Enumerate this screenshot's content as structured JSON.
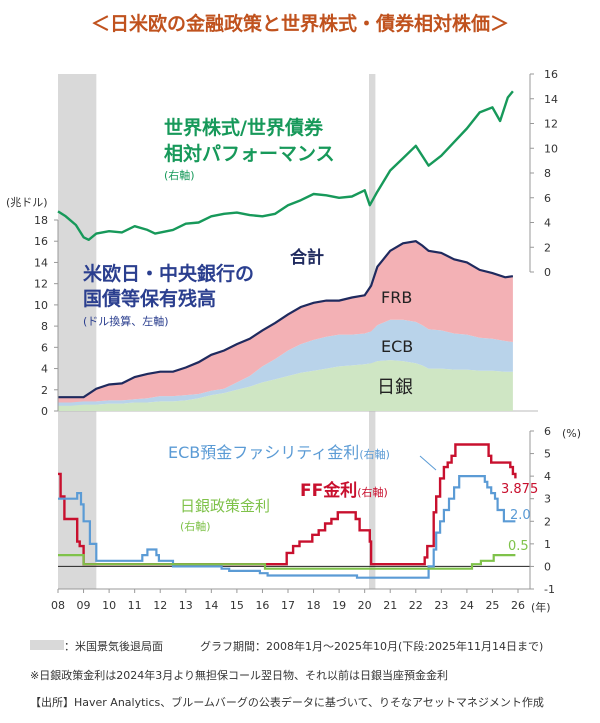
{
  "page_title": "＜日米欧の金融政策と世界株式・債券相対株価＞",
  "colors": {
    "title": "#c0521e",
    "green": "#17995a",
    "navy": "#1f2a5e",
    "frb": "#f3b1b5",
    "ecb": "#b9d3ea",
    "boj": "#cfe6c4",
    "ff": "#c8102e",
    "ecbline": "#5b9bd5",
    "bojline": "#7fc24a",
    "recession": "#d9d9d9"
  },
  "legend_recession": "：米国景気後退局面",
  "graph_period": "グラフ期間：2008年1月～2025年10月(下段:2025年11月14日まで)",
  "footnote": "※日銀政策金利は2024年3月より無担保コール翌日物、それ以前は日銀当座預金金利",
  "source": "【出所】Haver Analytics、ブルームバーグの公表データに基づいて、りそなアセットマネジメント作成",
  "chart_data": [
    {
      "type": "area",
      "title": "米欧日・中央銀行の国債等保有残高",
      "subtitle": "(ドル換算、左軸)",
      "ylabel": "(兆ドル)",
      "ylim": [
        0,
        18
      ],
      "yticks": [
        "0",
        "2",
        "4",
        "6",
        "8",
        "10",
        "12",
        "14",
        "16",
        "18"
      ],
      "x": [
        2008.0,
        2008.5,
        2009.0,
        2009.5,
        2010.0,
        2010.5,
        2011.0,
        2011.5,
        2012.0,
        2012.5,
        2013.0,
        2013.5,
        2014.0,
        2014.5,
        2015.0,
        2015.5,
        2016.0,
        2016.5,
        2017.0,
        2017.5,
        2018.0,
        2018.5,
        2019.0,
        2019.5,
        2020.0,
        2020.25,
        2020.5,
        2021.0,
        2021.5,
        2022.0,
        2022.25,
        2022.5,
        2023.0,
        2023.5,
        2024.0,
        2024.5,
        2025.0,
        2025.5,
        2025.8
      ],
      "series": [
        {
          "name": "日銀",
          "values": [
            0.5,
            0.5,
            0.6,
            0.6,
            0.7,
            0.7,
            0.8,
            0.8,
            0.9,
            0.9,
            1.0,
            1.2,
            1.5,
            1.7,
            2.0,
            2.3,
            2.7,
            3.0,
            3.3,
            3.6,
            3.8,
            4.0,
            4.2,
            4.3,
            4.4,
            4.5,
            4.7,
            4.8,
            4.7,
            4.5,
            4.3,
            4.0,
            4.0,
            3.9,
            3.9,
            3.8,
            3.8,
            3.7,
            3.7
          ]
        },
        {
          "name": "ECB",
          "values": [
            0.3,
            0.3,
            0.3,
            0.3,
            0.3,
            0.3,
            0.3,
            0.4,
            0.5,
            0.5,
            0.5,
            0.4,
            0.4,
            0.4,
            0.7,
            1.0,
            1.5,
            1.9,
            2.4,
            2.7,
            2.9,
            3.0,
            3.0,
            2.9,
            2.9,
            3.0,
            3.4,
            3.8,
            3.9,
            3.9,
            3.8,
            3.7,
            3.6,
            3.4,
            3.3,
            3.1,
            3.0,
            2.9,
            2.8
          ]
        },
        {
          "name": "FRB",
          "values": [
            0.5,
            0.5,
            0.4,
            1.2,
            1.5,
            1.6,
            2.1,
            2.3,
            2.3,
            2.3,
            2.6,
            3.0,
            3.4,
            3.6,
            3.6,
            3.5,
            3.4,
            3.4,
            3.4,
            3.5,
            3.5,
            3.4,
            3.2,
            3.5,
            3.6,
            4.3,
            5.5,
            6.5,
            7.2,
            7.6,
            7.5,
            7.4,
            7.3,
            7.0,
            6.8,
            6.4,
            6.2,
            6.0,
            6.2
          ]
        }
      ],
      "total_label": "合計",
      "area_labels": [
        "FRB",
        "ECB",
        "日銀"
      ]
    },
    {
      "type": "line",
      "title": "世界株式/世界債券相対パフォーマンス",
      "subtitle": "(右軸)",
      "ylim": [
        0,
        16
      ],
      "yticks": [
        "0",
        "2",
        "4",
        "6",
        "8",
        "10",
        "12",
        "14",
        "16"
      ],
      "x": [
        2008.0,
        2008.3,
        2008.7,
        2009.0,
        2009.2,
        2009.5,
        2010.0,
        2010.5,
        2011.0,
        2011.5,
        2011.8,
        2012.5,
        2013.0,
        2013.5,
        2014.0,
        2014.5,
        2015.0,
        2015.5,
        2016.0,
        2016.5,
        2017.0,
        2017.5,
        2018.0,
        2018.5,
        2019.0,
        2019.5,
        2020.0,
        2020.2,
        2020.5,
        2021.0,
        2021.5,
        2022.0,
        2022.5,
        2023.0,
        2023.5,
        2024.0,
        2024.5,
        2025.0,
        2025.3,
        2025.6,
        2025.8
      ],
      "values": [
        4.9,
        4.5,
        3.8,
        2.8,
        2.6,
        3.1,
        3.3,
        3.2,
        3.7,
        3.4,
        3.1,
        3.4,
        3.9,
        4.0,
        4.5,
        4.7,
        4.8,
        4.6,
        4.5,
        4.7,
        5.4,
        5.8,
        6.3,
        6.2,
        6.0,
        6.1,
        6.6,
        5.4,
        6.5,
        8.2,
        9.2,
        10.2,
        8.6,
        9.4,
        10.5,
        11.6,
        12.9,
        13.3,
        12.2,
        14.1,
        14.6
      ]
    },
    {
      "type": "line",
      "title": "政策金利",
      "ylabel": "(%)",
      "ylim": [
        -1,
        6
      ],
      "yticks": [
        "-1",
        "0",
        "1",
        "2",
        "3",
        "4",
        "5",
        "6"
      ],
      "xlim": [
        2008,
        2026
      ],
      "xticks": [
        "08",
        "09",
        "10",
        "11",
        "12",
        "13",
        "14",
        "15",
        "16",
        "17",
        "18",
        "19",
        "20",
        "21",
        "22",
        "23",
        "24",
        "25",
        "26"
      ],
      "xlabel": "(年)",
      "recessions": [
        [
          2008.0,
          2009.5
        ],
        [
          2020.17,
          2020.42
        ]
      ],
      "series": [
        {
          "name": "FF金利",
          "axis_note": "(右軸)",
          "end_label": "3.875",
          "x": [
            2008.0,
            2008.1,
            2008.25,
            2008.5,
            2008.75,
            2008.85,
            2009.0,
            2015.95,
            2016.95,
            2017.2,
            2017.45,
            2017.95,
            2018.2,
            2018.45,
            2018.7,
            2018.95,
            2019.55,
            2019.65,
            2019.8,
            2020.2,
            2020.25,
            2022.2,
            2022.35,
            2022.45,
            2022.7,
            2022.8,
            2022.95,
            2023.1,
            2023.25,
            2023.4,
            2023.55,
            2024.7,
            2024.85,
            2024.95,
            2025.7,
            2025.8,
            2025.9
          ],
          "values": [
            4.1,
            3.1,
            2.1,
            2.1,
            1.1,
            0.9,
            0.1,
            0.1,
            0.6,
            0.9,
            1.1,
            1.4,
            1.6,
            1.9,
            2.1,
            2.4,
            2.4,
            2.1,
            1.6,
            1.1,
            0.1,
            0.1,
            0.4,
            0.9,
            2.4,
            3.1,
            3.9,
            4.4,
            4.6,
            4.9,
            5.4,
            5.4,
            4.9,
            4.6,
            4.4,
            4.1,
            3.9
          ]
        },
        {
          "name": "ECB預金ファシリティ金利",
          "axis_note": "(右軸)",
          "end_label": "2.0",
          "x": [
            2008.0,
            2008.75,
            2008.9,
            2009.0,
            2009.25,
            2009.5,
            2011.3,
            2011.5,
            2011.85,
            2011.95,
            2012.5,
            2014.4,
            2014.7,
            2015.9,
            2016.2,
            2019.7,
            2022.5,
            2022.7,
            2022.8,
            2022.95,
            2023.1,
            2023.3,
            2023.5,
            2023.7,
            2024.45,
            2024.7,
            2024.8,
            2024.95,
            2025.1,
            2025.2,
            2025.45,
            2025.9
          ],
          "values": [
            3.0,
            3.25,
            2.75,
            2.0,
            1.0,
            0.25,
            0.5,
            0.75,
            0.5,
            0.25,
            0.0,
            -0.1,
            -0.2,
            -0.3,
            -0.4,
            -0.5,
            0.0,
            0.75,
            1.5,
            2.0,
            2.5,
            3.0,
            3.5,
            4.0,
            4.0,
            3.75,
            3.5,
            3.25,
            3.0,
            2.5,
            2.0,
            2.0
          ]
        },
        {
          "name": "日銀政策金利",
          "axis_note": "(右軸)",
          "end_label": "0.5",
          "x": [
            2008.0,
            2008.9,
            2009.0,
            2016.1,
            2024.2,
            2024.55,
            2025.05,
            2025.9
          ],
          "values": [
            0.5,
            0.5,
            0.1,
            -0.1,
            0.1,
            0.25,
            0.5,
            0.5
          ]
        }
      ]
    }
  ]
}
